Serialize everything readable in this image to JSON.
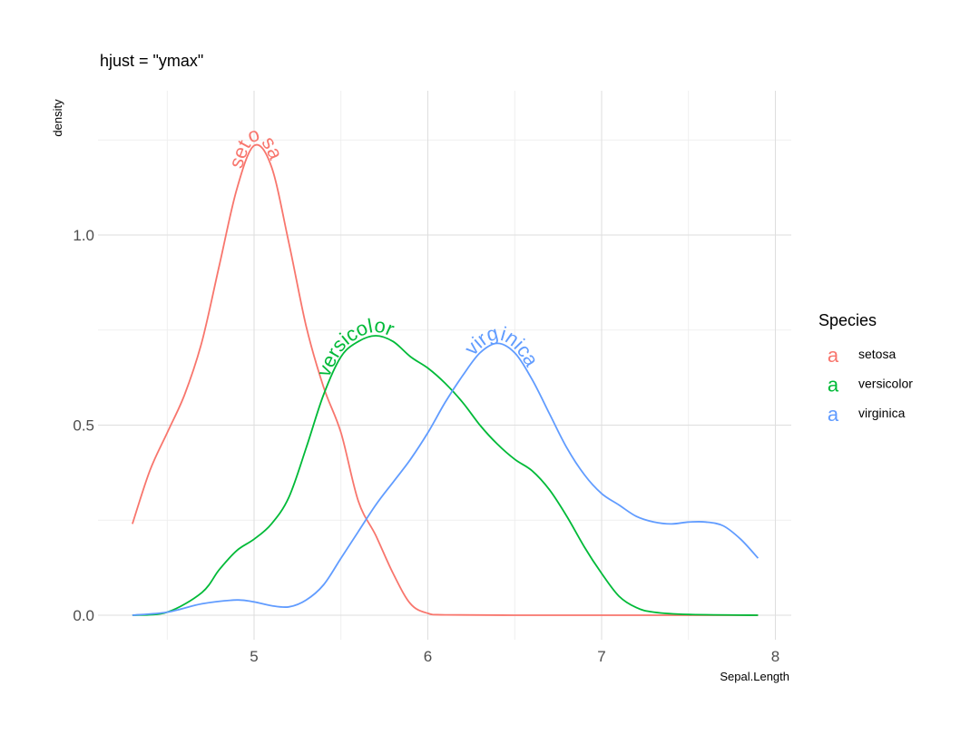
{
  "chart_data": {
    "type": "line",
    "title": "hjust = \"ymax\"",
    "xlabel": "Sepal.Length",
    "ylabel": "density",
    "xlim": [
      4.3,
      7.9
    ],
    "ylim": [
      0,
      1.25
    ],
    "x_ticks": [
      5,
      6,
      7,
      8
    ],
    "x_tick_labels": [
      "5",
      "6",
      "7",
      "8"
    ],
    "y_ticks": [
      0,
      0.5,
      1
    ],
    "y_tick_labels": [
      "0.0",
      "0.5",
      "1.0"
    ],
    "grid": true,
    "legend": {
      "title": "Species",
      "position": "right",
      "key_glyph": "a"
    },
    "series": [
      {
        "name": "setosa",
        "color": "#F8766D",
        "label": "setosa",
        "points": [
          [
            4.3,
            0.24
          ],
          [
            4.4,
            0.38
          ],
          [
            4.5,
            0.48
          ],
          [
            4.6,
            0.58
          ],
          [
            4.7,
            0.72
          ],
          [
            4.8,
            0.92
          ],
          [
            4.9,
            1.12
          ],
          [
            5.0,
            1.235
          ],
          [
            5.1,
            1.18
          ],
          [
            5.2,
            0.98
          ],
          [
            5.3,
            0.76
          ],
          [
            5.4,
            0.6
          ],
          [
            5.5,
            0.48
          ],
          [
            5.6,
            0.3
          ],
          [
            5.7,
            0.21
          ],
          [
            5.8,
            0.11
          ],
          [
            5.9,
            0.03
          ],
          [
            6.0,
            0.005
          ],
          [
            6.1,
            0.001
          ],
          [
            6.5,
            0.0
          ],
          [
            7.0,
            0.0
          ],
          [
            7.5,
            0.0
          ],
          [
            7.9,
            0.0
          ]
        ]
      },
      {
        "name": "versicolor",
        "color": "#00BA38",
        "label": "versicolor",
        "points": [
          [
            4.3,
            0.0
          ],
          [
            4.5,
            0.008
          ],
          [
            4.7,
            0.06
          ],
          [
            4.8,
            0.12
          ],
          [
            4.9,
            0.17
          ],
          [
            5.0,
            0.2
          ],
          [
            5.1,
            0.24
          ],
          [
            5.2,
            0.31
          ],
          [
            5.3,
            0.44
          ],
          [
            5.4,
            0.58
          ],
          [
            5.5,
            0.68
          ],
          [
            5.6,
            0.72
          ],
          [
            5.7,
            0.735
          ],
          [
            5.8,
            0.72
          ],
          [
            5.9,
            0.68
          ],
          [
            6.0,
            0.65
          ],
          [
            6.1,
            0.61
          ],
          [
            6.2,
            0.56
          ],
          [
            6.3,
            0.5
          ],
          [
            6.4,
            0.45
          ],
          [
            6.5,
            0.41
          ],
          [
            6.6,
            0.38
          ],
          [
            6.7,
            0.33
          ],
          [
            6.8,
            0.26
          ],
          [
            6.9,
            0.18
          ],
          [
            7.0,
            0.11
          ],
          [
            7.1,
            0.05
          ],
          [
            7.2,
            0.02
          ],
          [
            7.3,
            0.008
          ],
          [
            7.5,
            0.002
          ],
          [
            7.9,
            0.0
          ]
        ]
      },
      {
        "name": "virginica",
        "color": "#619CFF",
        "label": "virginica",
        "points": [
          [
            4.3,
            0.0
          ],
          [
            4.5,
            0.008
          ],
          [
            4.7,
            0.03
          ],
          [
            4.9,
            0.04
          ],
          [
            5.0,
            0.035
          ],
          [
            5.1,
            0.025
          ],
          [
            5.2,
            0.022
          ],
          [
            5.3,
            0.04
          ],
          [
            5.4,
            0.08
          ],
          [
            5.5,
            0.15
          ],
          [
            5.6,
            0.22
          ],
          [
            5.7,
            0.29
          ],
          [
            5.8,
            0.35
          ],
          [
            5.9,
            0.41
          ],
          [
            6.0,
            0.48
          ],
          [
            6.1,
            0.56
          ],
          [
            6.2,
            0.63
          ],
          [
            6.3,
            0.69
          ],
          [
            6.4,
            0.715
          ],
          [
            6.5,
            0.69
          ],
          [
            6.6,
            0.62
          ],
          [
            6.7,
            0.53
          ],
          [
            6.8,
            0.44
          ],
          [
            6.9,
            0.37
          ],
          [
            7.0,
            0.32
          ],
          [
            7.1,
            0.29
          ],
          [
            7.2,
            0.26
          ],
          [
            7.3,
            0.245
          ],
          [
            7.4,
            0.24
          ],
          [
            7.5,
            0.245
          ],
          [
            7.6,
            0.245
          ],
          [
            7.7,
            0.235
          ],
          [
            7.8,
            0.2
          ],
          [
            7.9,
            0.15
          ]
        ]
      }
    ]
  }
}
